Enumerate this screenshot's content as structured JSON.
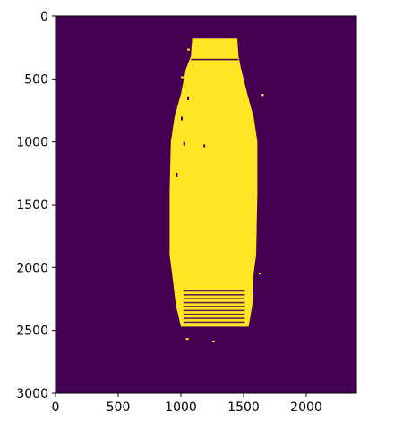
{
  "chart_data": {
    "type": "heatmap",
    "title": "",
    "xlabel": "",
    "ylabel": "",
    "x_axis": {
      "range": [
        0,
        2400
      ],
      "ticks": [
        0,
        500,
        1000,
        1500,
        2000
      ],
      "tick_labels": [
        "0",
        "500",
        "1000",
        "1500",
        "2000"
      ]
    },
    "y_axis": {
      "range": [
        3000,
        0
      ],
      "inverted": true,
      "ticks": [
        0,
        500,
        1000,
        1500,
        2000,
        2500,
        3000
      ],
      "tick_labels": [
        "0",
        "500",
        "1000",
        "1500",
        "2000",
        "2500",
        "3000"
      ]
    },
    "colormap": "viridis",
    "values_shown": [
      0,
      1
    ],
    "colors": {
      "background_value_0": "#440154",
      "foreground_value_1": "#fde725"
    },
    "grid": false,
    "legend": "none",
    "foreground_region": {
      "description_shape": "bottle mask",
      "cap": {
        "x": [
          1090,
          1450
        ],
        "y": [
          180,
          320
        ]
      },
      "neck_collar": {
        "x": [
          1050,
          1460
        ],
        "y": [
          320,
          420
        ]
      },
      "shoulder": {
        "x": [
          950,
          1590
        ],
        "y": [
          420,
          1000
        ]
      },
      "body": {
        "x": [
          910,
          1600
        ],
        "y": [
          1000,
          2000
        ]
      },
      "base_label": {
        "x": [
          960,
          1580
        ],
        "y": [
          2000,
          2500
        ]
      },
      "profile": [
        [
          1090,
          180,
          1450
        ],
        [
          1080,
          320,
          1460
        ],
        [
          1040,
          420,
          1480
        ],
        [
          1000,
          620,
          1530
        ],
        [
          950,
          800,
          1580
        ],
        [
          920,
          1000,
          1610
        ],
        [
          910,
          1400,
          1610
        ],
        [
          910,
          1900,
          1600
        ],
        [
          930,
          2050,
          1580
        ],
        [
          960,
          2300,
          1570
        ],
        [
          1000,
          2470,
          1540
        ]
      ]
    }
  }
}
